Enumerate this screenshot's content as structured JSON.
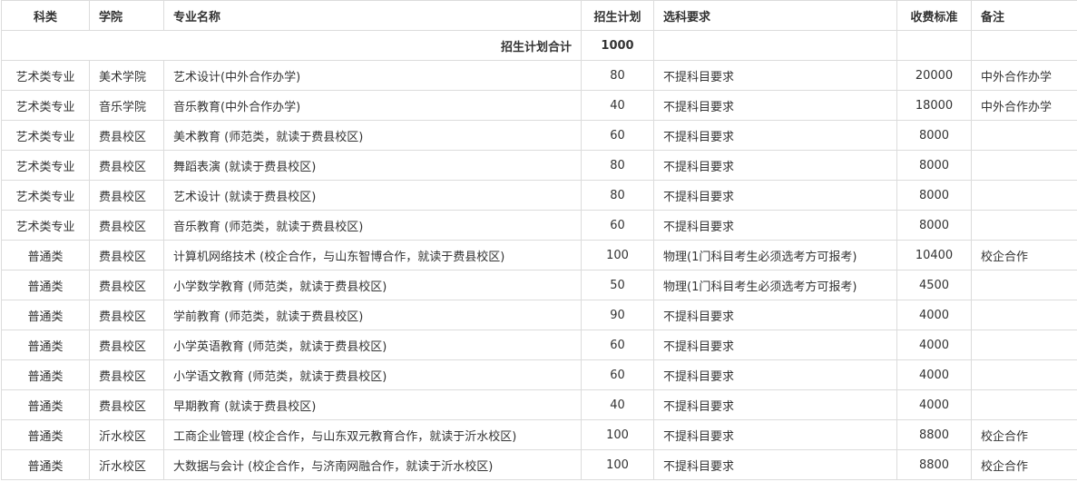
{
  "headers": [
    "科类",
    "学院",
    "专业名称",
    "招生计划",
    "选科要求",
    "收费标准",
    "备注"
  ],
  "total": {
    "label": "招生计划合计",
    "value": "1000"
  },
  "rows": [
    [
      "艺术类专业",
      "美术学院",
      "艺术设计(中外合作办学)",
      "80",
      "不提科目要求",
      "20000",
      "中外合作办学"
    ],
    [
      "艺术类专业",
      "音乐学院",
      "音乐教育(中外合作办学)",
      "40",
      "不提科目要求",
      "18000",
      "中外合作办学"
    ],
    [
      "艺术类专业",
      "费县校区",
      "美术教育 (师范类，就读于费县校区)",
      "60",
      "不提科目要求",
      "8000",
      ""
    ],
    [
      "艺术类专业",
      "费县校区",
      "舞蹈表演 (就读于费县校区)",
      "80",
      "不提科目要求",
      "8000",
      ""
    ],
    [
      "艺术类专业",
      "费县校区",
      "艺术设计 (就读于费县校区)",
      "80",
      "不提科目要求",
      "8000",
      ""
    ],
    [
      "艺术类专业",
      "费县校区",
      "音乐教育 (师范类，就读于费县校区)",
      "60",
      "不提科目要求",
      "8000",
      ""
    ],
    [
      "普通类",
      "费县校区",
      "计算机网络技术 (校企合作，与山东智博合作，就读于费县校区)",
      "100",
      "物理(1门科目考生必须选考方可报考)",
      "10400",
      "校企合作"
    ],
    [
      "普通类",
      "费县校区",
      "小学数学教育 (师范类，就读于费县校区)",
      "50",
      "物理(1门科目考生必须选考方可报考)",
      "4500",
      ""
    ],
    [
      "普通类",
      "费县校区",
      "学前教育 (师范类，就读于费县校区)",
      "90",
      "不提科目要求",
      "4000",
      ""
    ],
    [
      "普通类",
      "费县校区",
      "小学英语教育 (师范类，就读于费县校区)",
      "60",
      "不提科目要求",
      "4000",
      ""
    ],
    [
      "普通类",
      "费县校区",
      "小学语文教育 (师范类，就读于费县校区)",
      "60",
      "不提科目要求",
      "4000",
      ""
    ],
    [
      "普通类",
      "费县校区",
      "早期教育 (就读于费县校区)",
      "40",
      "不提科目要求",
      "4000",
      ""
    ],
    [
      "普通类",
      "沂水校区",
      "工商企业管理 (校企合作，与山东双元教育合作，就读于沂水校区)",
      "100",
      "不提科目要求",
      "8800",
      "校企合作"
    ],
    [
      "普通类",
      "沂水校区",
      "大数据与会计 (校企合作，与济南网融合作，就读于沂水校区)",
      "100",
      "不提科目要求",
      "8800",
      "校企合作"
    ]
  ]
}
